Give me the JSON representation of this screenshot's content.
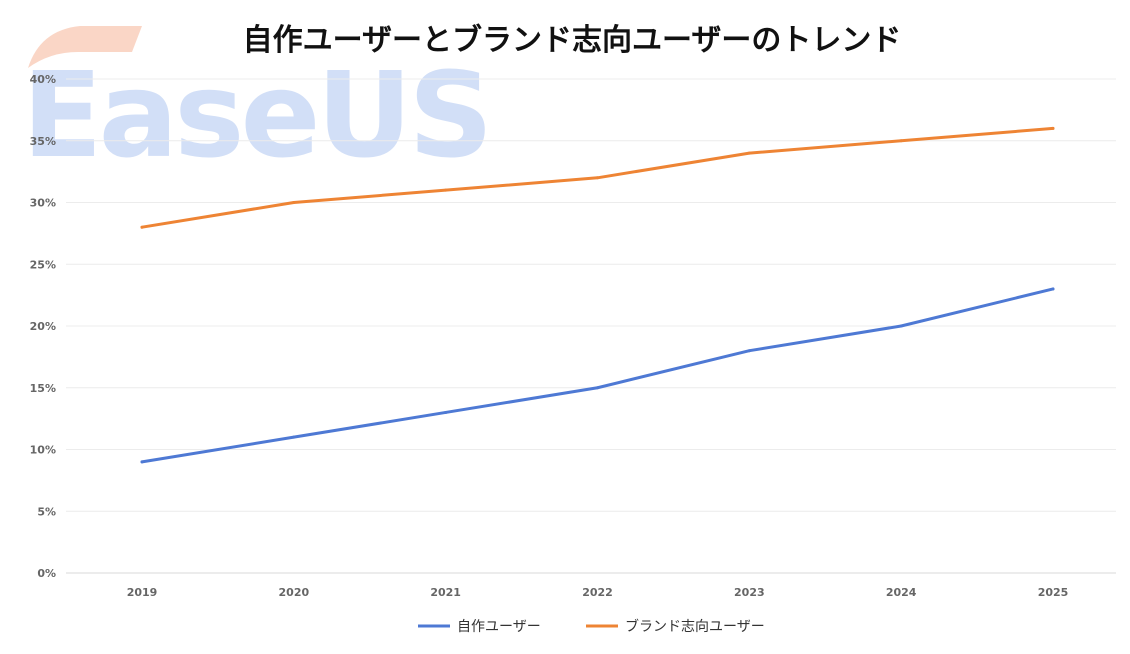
{
  "chart_data": {
    "type": "line",
    "title": "自作ユーザーとブランド志向ユーザーのトレンド",
    "xlabel": "",
    "ylabel": "",
    "categories": [
      "2019",
      "2020",
      "2021",
      "2022",
      "2023",
      "2024",
      "2025"
    ],
    "ylim": [
      0,
      40
    ],
    "yticks": [
      0,
      5,
      10,
      15,
      20,
      25,
      30,
      35,
      40
    ],
    "y_unit": "%",
    "grid": "horizontal",
    "legend": "bottom",
    "series": [
      {
        "name": "自作ユーザー",
        "color": "#4e79d4",
        "values": [
          9,
          11,
          13,
          15,
          18,
          20,
          23
        ]
      },
      {
        "name": "ブランド志向ユーザー",
        "color": "#ee8434",
        "values": [
          28,
          30,
          31,
          32,
          34,
          35,
          36
        ]
      }
    ]
  },
  "watermark": {
    "text": "EaseUS",
    "color": "#4a7ee0",
    "logo_colors": [
      "#f08a5d",
      "#f7c78a"
    ]
  }
}
